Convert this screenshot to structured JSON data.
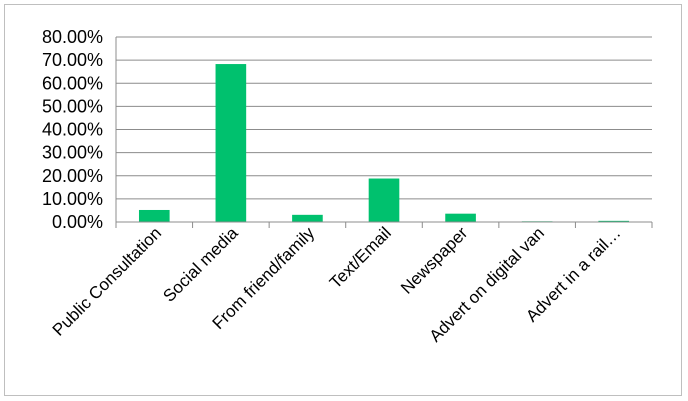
{
  "chart_data": {
    "type": "bar",
    "title": "",
    "xlabel": "",
    "ylabel": "",
    "categories": [
      "Public Consultation",
      "Social media",
      "From friend/family",
      "Text/Email",
      "Newspaper",
      "Advert on digital van",
      "Advert in a rail…"
    ],
    "values": [
      5.2,
      68.3,
      3.1,
      18.8,
      3.6,
      0.3,
      0.5
    ],
    "ylim": [
      0,
      80
    ],
    "yticks": [
      "0.00%",
      "10.00%",
      "20.00%",
      "30.00%",
      "40.00%",
      "50.00%",
      "60.00%",
      "70.00%",
      "80.00%"
    ],
    "grid": true,
    "legend": "none",
    "bar_color": "#00c16e",
    "grid_color": "#8c8c8c"
  }
}
